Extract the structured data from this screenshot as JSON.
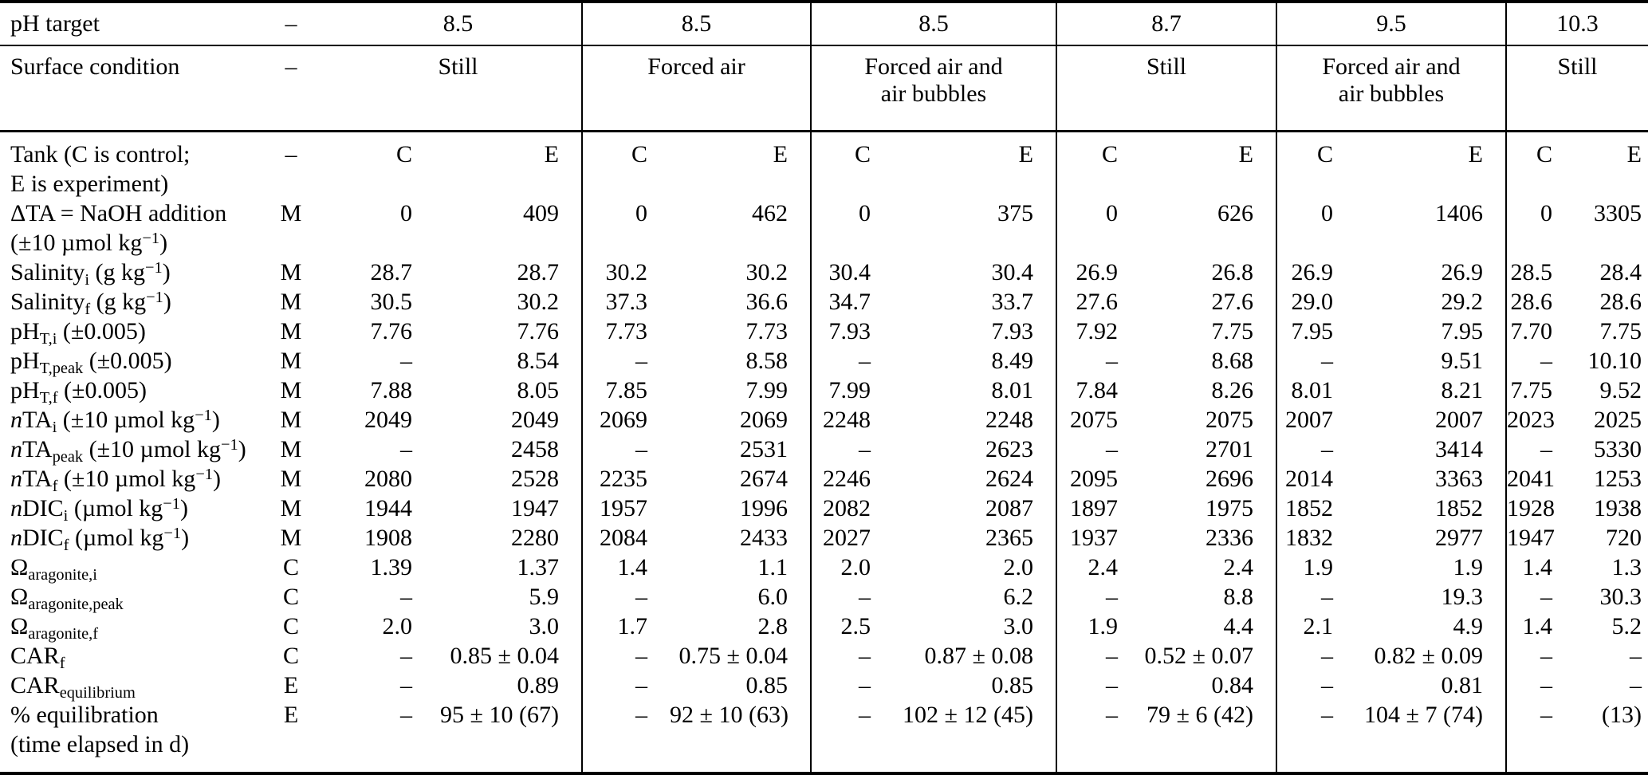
{
  "table": {
    "header": {
      "ph_target_label": "pH target",
      "surface_label": "Surface condition",
      "dash": "–",
      "groups": [
        {
          "ph": "8.5",
          "surface": "Still"
        },
        {
          "ph": "8.5",
          "surface": "Forced air"
        },
        {
          "ph": "8.5",
          "surface": "Forced air and\nair bubbles"
        },
        {
          "ph": "8.7",
          "surface": "Still"
        },
        {
          "ph": "9.5",
          "surface": "Forced air and\nair bubbles"
        },
        {
          "ph": "10.3",
          "surface": "Still"
        }
      ]
    },
    "rows": [
      {
        "label": "Tank (C is control;\nE is experiment)",
        "type": "–",
        "cells": [
          "C",
          "E",
          "C",
          "E",
          "C",
          "E",
          "C",
          "E",
          "C",
          "E",
          "C",
          "E"
        ]
      },
      {
        "label": "ΔTA = NaOH addition\n(±10 µmol kg^−1^)",
        "type": "M",
        "cells": [
          "0",
          "409",
          "0",
          "462",
          "0",
          "375",
          "0",
          "626",
          "0",
          "1406",
          "0",
          "3305"
        ]
      },
      {
        "label": "Salinity~i~ (g kg^−1^)",
        "type": "M",
        "cells": [
          "28.7",
          "28.7",
          "30.2",
          "30.2",
          "30.4",
          "30.4",
          "26.9",
          "26.8",
          "26.9",
          "26.9",
          "28.5",
          "28.4"
        ]
      },
      {
        "label": "Salinity~f~ (g kg^−1^)",
        "type": "M",
        "cells": [
          "30.5",
          "30.2",
          "37.3",
          "36.6",
          "34.7",
          "33.7",
          "27.6",
          "27.6",
          "29.0",
          "29.2",
          "28.6",
          "28.6"
        ]
      },
      {
        "label": "pH~T,i~ (±0.005)",
        "type": "M",
        "cells": [
          "7.76",
          "7.76",
          "7.73",
          "7.73",
          "7.93",
          "7.93",
          "7.92",
          "7.75",
          "7.95",
          "7.95",
          "7.70",
          "7.75"
        ]
      },
      {
        "label": "pH~T,peak~ (±0.005)",
        "type": "M",
        "cells": [
          "–",
          "8.54",
          "–",
          "8.58",
          "–",
          "8.49",
          "–",
          "8.68",
          "–",
          "9.51",
          "–",
          "10.10"
        ]
      },
      {
        "label": "pH~T,f~ (±0.005)",
        "type": "M",
        "cells": [
          "7.88",
          "8.05",
          "7.85",
          "7.99",
          "7.99",
          "8.01",
          "7.84",
          "8.26",
          "8.01",
          "8.21",
          "7.75",
          "9.52"
        ]
      },
      {
        "label": "*n*TA~i~ (±10 µmol kg^−1^)",
        "type": "M",
        "cells": [
          "2049",
          "2049",
          "2069",
          "2069",
          "2248",
          "2248",
          "2075",
          "2075",
          "2007",
          "2007",
          "2023",
          "2025"
        ]
      },
      {
        "label": "*n*TA~peak~ (±10 µmol kg^−1^)",
        "type": "M",
        "cells": [
          "–",
          "2458",
          "–",
          "2531",
          "–",
          "2623",
          "–",
          "2701",
          "–",
          "3414",
          "–",
          "5330"
        ]
      },
      {
        "label": "*n*TA~f~ (±10 µmol kg^−1^)",
        "type": "M",
        "cells": [
          "2080",
          "2528",
          "2235",
          "2674",
          "2246",
          "2624",
          "2095",
          "2696",
          "2014",
          "3363",
          "2041",
          "1253"
        ]
      },
      {
        "label": "*n*DIC~i~ (µmol kg^−1^)",
        "type": "M",
        "cells": [
          "1944",
          "1947",
          "1957",
          "1996",
          "2082",
          "2087",
          "1897",
          "1975",
          "1852",
          "1852",
          "1928",
          "1938"
        ]
      },
      {
        "label": "*n*DIC~f~ (µmol kg^−1^)",
        "type": "M",
        "cells": [
          "1908",
          "2280",
          "2084",
          "2433",
          "2027",
          "2365",
          "1937",
          "2336",
          "1832",
          "2977",
          "1947",
          "720"
        ]
      },
      {
        "label": "Ω~aragonite,i~",
        "type": "C",
        "cells": [
          "1.39",
          "1.37",
          "1.4",
          "1.1",
          "2.0",
          "2.0",
          "2.4",
          "2.4",
          "1.9",
          "1.9",
          "1.4",
          "1.3"
        ]
      },
      {
        "label": "Ω~aragonite,peak~",
        "type": "C",
        "cells": [
          "–",
          "5.9",
          "–",
          "6.0",
          "–",
          "6.2",
          "–",
          "8.8",
          "–",
          "19.3",
          "–",
          "30.3"
        ]
      },
      {
        "label": "Ω~aragonite,f~",
        "type": "C",
        "cells": [
          "2.0",
          "3.0",
          "1.7",
          "2.8",
          "2.5",
          "3.0",
          "1.9",
          "4.4",
          "2.1",
          "4.9",
          "1.4",
          "5.2"
        ]
      },
      {
        "label": "CAR~f~",
        "type": "C",
        "cells": [
          "–",
          "0.85 ± 0.04",
          "–",
          "0.75 ± 0.04",
          "–",
          "0.87 ± 0.08",
          "–",
          "0.52 ± 0.07",
          "–",
          "0.82 ± 0.09",
          "–",
          "–"
        ]
      },
      {
        "label": "CAR~equilibrium~",
        "type": "E",
        "cells": [
          "–",
          "0.89",
          "–",
          "0.85",
          "–",
          "0.85",
          "–",
          "0.84",
          "–",
          "0.81",
          "–",
          "–"
        ]
      },
      {
        "label": "% equilibration\n(time elapsed in d)",
        "type": "E",
        "cells": [
          "–",
          "95 ± 10 (67)",
          "–",
          "92 ± 10 (63)",
          "–",
          "102 ± 12 (45)",
          "–",
          "79 ± 6 (42)",
          "–",
          "104 ± 7 (74)",
          "–",
          "(13)"
        ]
      }
    ]
  }
}
